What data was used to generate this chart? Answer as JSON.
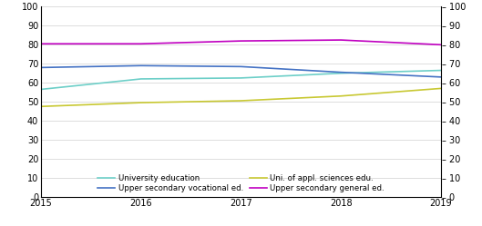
{
  "years": [
    2015,
    2016,
    2017,
    2018,
    2019
  ],
  "series": {
    "University education": {
      "values": [
        56.5,
        62.0,
        62.5,
        65.0,
        66.5
      ],
      "color": "#6dcfc8",
      "linewidth": 1.2
    },
    "Upper secondary vocational ed.": {
      "values": [
        68.0,
        69.0,
        68.5,
        65.5,
        63.0
      ],
      "color": "#4472c4",
      "linewidth": 1.2
    },
    "Uni. of appl. sciences edu.": {
      "values": [
        47.5,
        49.5,
        50.5,
        53.0,
        57.0
      ],
      "color": "#c8c832",
      "linewidth": 1.2
    },
    "Upper secondary general ed.": {
      "values": [
        80.5,
        80.5,
        82.0,
        82.5,
        80.0
      ],
      "color": "#c000c0",
      "linewidth": 1.2
    }
  },
  "ylim": [
    0,
    100
  ],
  "yticks": [
    0,
    10,
    20,
    30,
    40,
    50,
    60,
    70,
    80,
    90,
    100
  ],
  "xlim": [
    2015,
    2019
  ],
  "xticks": [
    2015,
    2016,
    2017,
    2018,
    2019
  ],
  "grid_color": "#d0d0d0",
  "background_color": "#ffffff",
  "spine_color": "#000000",
  "legend_order": [
    "University education",
    "Upper secondary vocational ed.",
    "Uni. of appl. sciences edu.",
    "Upper secondary general ed."
  ]
}
